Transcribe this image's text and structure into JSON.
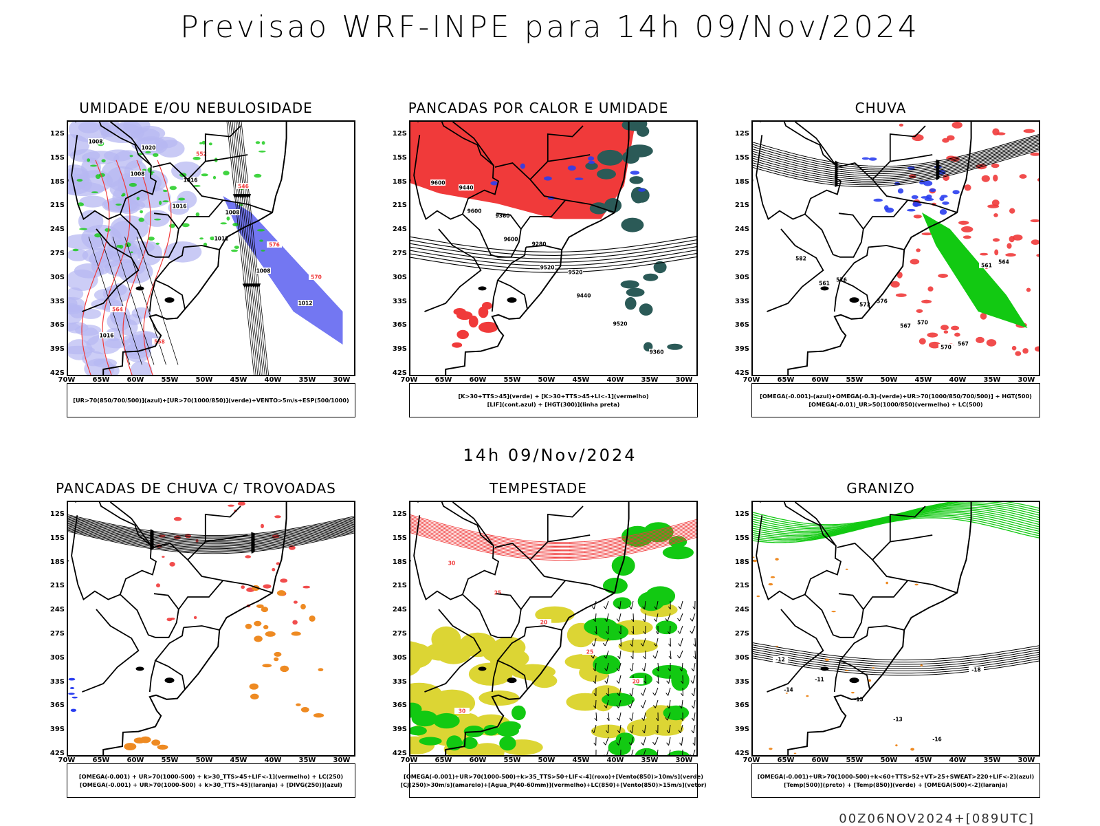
{
  "header": {
    "title": "Previsao WRF-INPE  para 14h 09/Nov/2024"
  },
  "middle": {
    "title": "14h 09/Nov/2024"
  },
  "footer": {
    "stamp": "00Z06NOV2024+[089UTC]"
  },
  "axes": {
    "lat_labels": [
      "12S",
      "15S",
      "18S",
      "21S",
      "24S",
      "27S",
      "30S",
      "33S",
      "36S",
      "39S",
      "42S"
    ],
    "lon_labels": [
      "70W",
      "65W",
      "60W",
      "55W",
      "50W",
      "45W",
      "40W",
      "35W",
      "30W"
    ]
  },
  "colors": {
    "red": "#f03a3a",
    "green": "#12c912",
    "blue": "#2a3ef0",
    "lilac": "#b7b8f2",
    "teal": "#2b5a57",
    "yellow": "#dcd534",
    "orange": "#ee8a22",
    "black": "#000000"
  },
  "panels": [
    {
      "id": "umidade",
      "title": "UMIDADE E/OU NEBULOSIDADE",
      "legend": [
        "[UR>70(850/700/500)](azul)+[UR>70(1000/850)](verde)+VENTO>5m/s+ESP(500/1000)"
      ],
      "contour_labels": [
        "1008",
        "1008",
        "1016",
        "1012",
        "1008",
        "1012",
        "1016",
        "1020",
        "1016",
        "1008",
        "576",
        "570",
        "564",
        "558",
        "552",
        "546"
      ]
    },
    {
      "id": "pancadas-calor",
      "title": "PANCADAS POR CALOR E UMIDADE",
      "legend": [
        "[K>30+TTS>45](verde) + [K>30+TTS>45+LI<-1](vermelho)",
        "[LIF](cont.azul) + [HGT(300)](linha preta)"
      ],
      "contour_labels": [
        "9600",
        "9600",
        "9600",
        "9520",
        "9440",
        "9520",
        "9360",
        "9440",
        "9360",
        "9280",
        "9520"
      ]
    },
    {
      "id": "chuva",
      "title": "CHUVA",
      "legend": [
        "[OMEGA(-0.001)-(azul)+OMEGA(-0.3)-(verde)+UR>70(1000/850/700/500)] + HGT(500)",
        "[OMEGA(-0.01)_UR>50(1000/850)(vermelho) + LC(500)"
      ],
      "contour_labels": [
        "582",
        "576",
        "576",
        "570",
        "567",
        "564",
        "561",
        "573",
        "567",
        "570",
        "561"
      ]
    },
    {
      "id": "trovoadas",
      "title": "PANCADAS DE CHUVA C/ TROVOADAS",
      "legend": [
        "[OMEGA(-0.001) + UR>70(1000-500) + k>30_TTS>45+LIF<-1](vermelho) + LC(250)",
        "[OMEGA(-0.001) + UR>70(1000-500) + k>30_TTS>45](laranja) + [DIVG(250)](azul)"
      ]
    },
    {
      "id": "tempestade",
      "title": "TEMPESTADE",
      "legend": [
        "[OMEGA(-0.001)+UR>70(1000-500)+k>35_TTS>50+LIF<-4](roxo)+[Vento(850)>10m/s](verde)",
        "[CJ(250)>30m/s](amarelo)+[Agua_P(40-60mm)](vermelho)+LC(850)+[Vento(850)>15m/s](vetor)"
      ],
      "contour_labels": [
        "30",
        "25",
        "20",
        "25",
        "20",
        "30"
      ]
    },
    {
      "id": "granizo",
      "title": "GRANIZO",
      "legend": [
        "[OMEGA(-0.001)+UR>70(1000-500)+k<60+TTS>52+VT>25+SWEAT>220+LIF<-2](azul)",
        "[Temp(500)](preto) + [Temp(850)](verde) + [OMEGA(500)<-2](laranja)"
      ],
      "contour_labels": [
        "-12",
        "-11",
        "-15",
        "-13",
        "-16",
        "-18",
        "-14"
      ]
    }
  ]
}
